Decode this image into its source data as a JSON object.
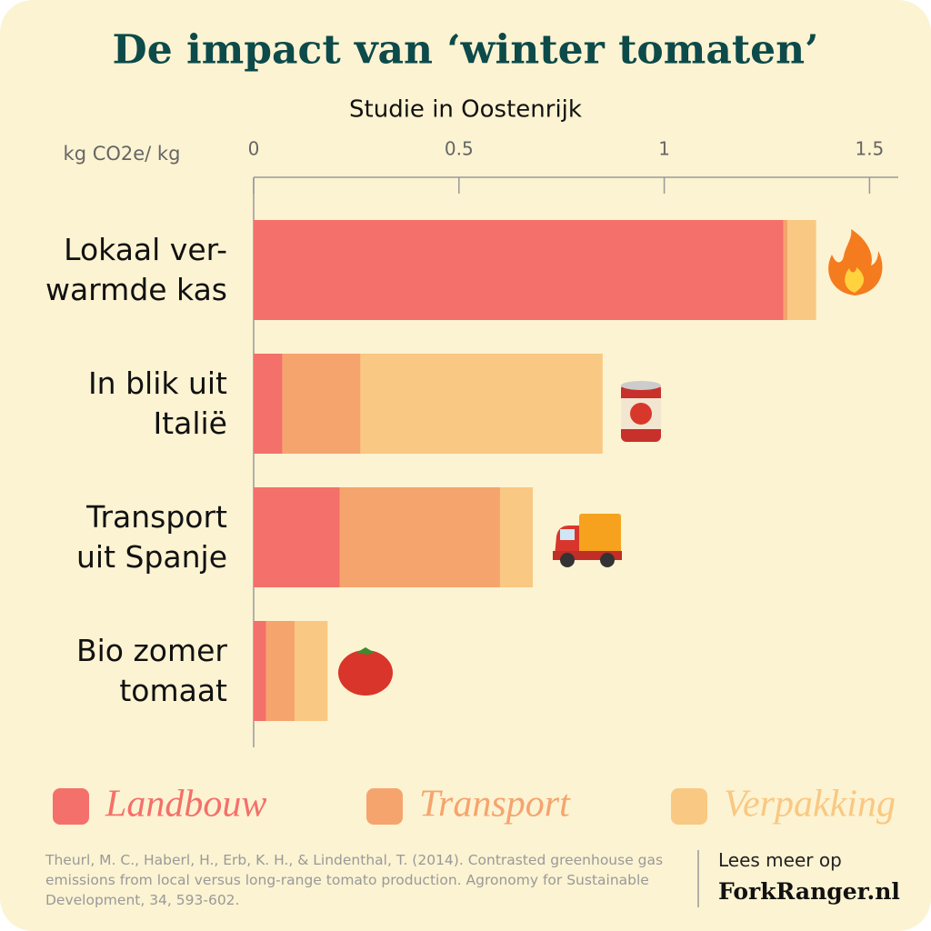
{
  "chart_data": {
    "type": "stacked-bar",
    "title": "De impact van ‘winter tomaten’",
    "subtitle": "Studie in Oostenrijk",
    "x_label": "kg CO2e/ kg",
    "categories": [
      "Lokaal ver-\nwarmde kas",
      "In blik uit\nItalië",
      "Transport\nuit Spanje",
      "Bio zomer\ntomaat"
    ],
    "series": [
      {
        "name": "Landbouw",
        "color": "#f4706a",
        "values": [
          1.29,
          0.07,
          0.21,
          0.03
        ]
      },
      {
        "name": "Transport",
        "color": "#f5a46e",
        "values": [
          0.01,
          0.19,
          0.39,
          0.07
        ]
      },
      {
        "name": "Verpakking",
        "color": "#f9c882",
        "values": [
          0.07,
          0.59,
          0.08,
          0.08
        ]
      }
    ],
    "xlim": [
      0,
      1.57
    ],
    "xticks": [
      0,
      0.5,
      1,
      1.5
    ],
    "citation": "Theurl, M. C., Haberl, H., Erb, K. H., & Lindenthal, T. (2014). Contrasted greenhouse gas emissions from local versus long-range tomato production. Agronomy for Sustainable Development, 34, 593-602.",
    "read_more": "Lees meer op",
    "site": "ForkRanger.nl"
  }
}
